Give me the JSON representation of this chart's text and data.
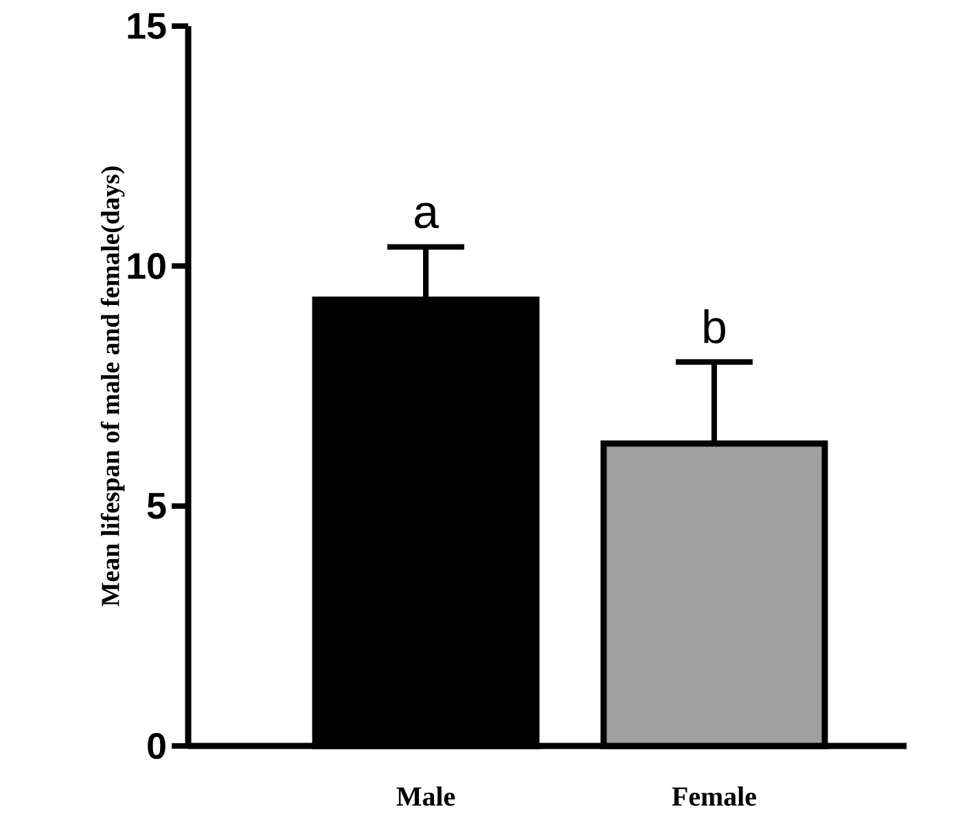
{
  "chart_data": {
    "type": "bar",
    "ylabel": "Mean lifespan of male and female(days)",
    "categories": [
      "Male",
      "Female"
    ],
    "values": [
      9.3,
      6.3
    ],
    "colors": [
      "#000000",
      "#a0a0a0"
    ],
    "errors": [
      [
        9.3,
        10.4
      ],
      [
        6.3,
        8.0
      ]
    ],
    "ylim": [
      0,
      15
    ],
    "yticks": [
      0,
      5,
      10,
      15
    ],
    "annotations": [
      "a",
      "b"
    ],
    "grid": false
  }
}
